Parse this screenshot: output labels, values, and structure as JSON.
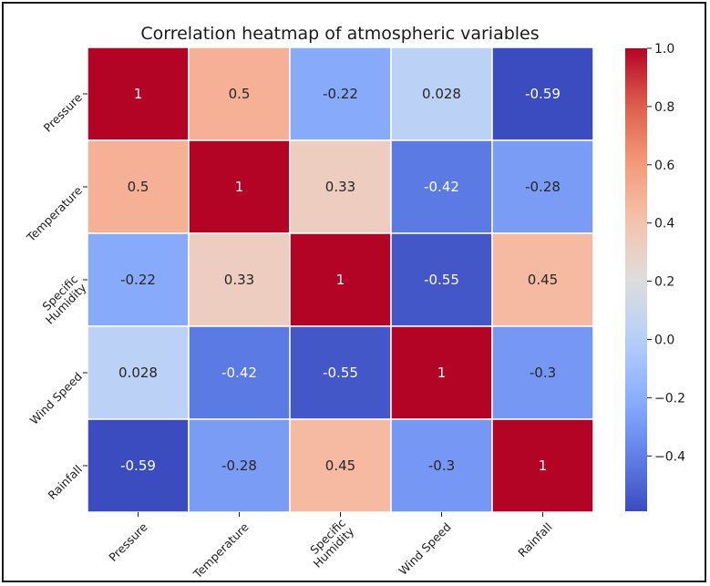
{
  "chart_data": {
    "type": "heatmap",
    "title": "Correlation heatmap of atmospheric variables",
    "rows": [
      "Pressure",
      "Temperature",
      "Specific\nHumidity",
      "Wind Speed",
      "Rainfall"
    ],
    "columns": [
      "Pressure",
      "Temperature",
      "Specific\nHumidity",
      "Wind Speed",
      "Rainfall"
    ],
    "values": [
      [
        1,
        0.5,
        -0.22,
        0.028,
        -0.59
      ],
      [
        0.5,
        1,
        0.33,
        -0.42,
        -0.28
      ],
      [
        -0.22,
        0.33,
        1,
        -0.55,
        0.45
      ],
      [
        0.028,
        -0.42,
        -0.55,
        1,
        -0.3
      ],
      [
        -0.59,
        -0.28,
        0.45,
        -0.3,
        1
      ]
    ],
    "colormap": "coolwarm",
    "vmin": -0.59,
    "vmax": 1.0,
    "colorbar_ticks": [
      "1.0",
      "0.8",
      "0.6",
      "0.4",
      "0.2",
      "0.0",
      "−0.2",
      "−0.4"
    ],
    "colorbar_tick_values": [
      1.0,
      0.8,
      0.6,
      0.4,
      0.2,
      0.0,
      -0.2,
      -0.4
    ]
  }
}
